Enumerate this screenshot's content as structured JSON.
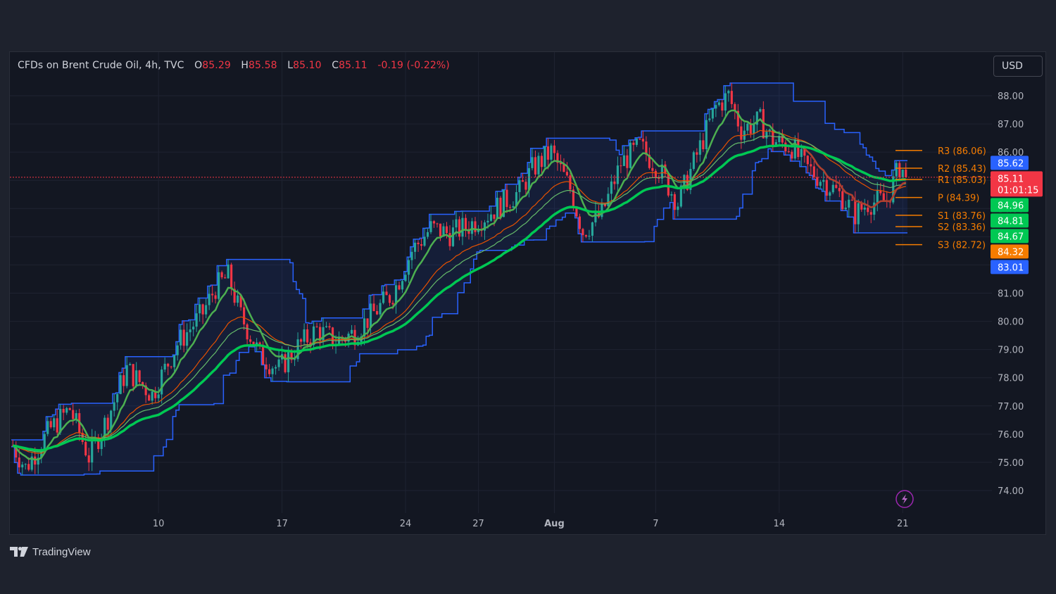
{
  "legend": {
    "symbol": "CFDs on Brent Crude Oil, 4h, TVC",
    "open_label": "O",
    "open": "85.29",
    "high_label": "H",
    "high": "85.58",
    "low_label": "L",
    "low": "85.10",
    "close_label": "C",
    "close": "85.11",
    "change": "-0.19 (-0.22%)"
  },
  "currency": "USD",
  "brand": "TradingView",
  "colors": {
    "up": "#26a69a",
    "down": "#f23645",
    "channel": "#2962ff",
    "ema_fast": "#4caf50",
    "ema_slow": "#43a047",
    "pivot": "#f57c00",
    "background": "#131722"
  },
  "chart_data": {
    "type": "candlestick",
    "instrument": "CFDs on Brent Crude Oil",
    "timeframe": "4h",
    "ylim": [
      73.2,
      88.8
    ],
    "y_ticks": [
      "74.00",
      "75.00",
      "76.00",
      "77.00",
      "78.00",
      "79.00",
      "80.00",
      "81.00",
      "82.00",
      "83.00",
      "84.00",
      "85.00",
      "86.00",
      "87.00",
      "88.00"
    ],
    "x_ticks": [
      {
        "label": "10",
        "bar": 46
      },
      {
        "label": "17",
        "bar": 85
      },
      {
        "label": "24",
        "bar": 124
      },
      {
        "label": "27",
        "bar": 147
      },
      {
        "label": "Aug",
        "bar": 171,
        "bold": true
      },
      {
        "label": "7",
        "bar": 203
      },
      {
        "label": "14",
        "bar": 242
      },
      {
        "label": "21",
        "bar": 281
      }
    ],
    "bars_total": 283,
    "close_path": [
      [
        0,
        75.6
      ],
      [
        4,
        74.8
      ],
      [
        12,
        76.2
      ],
      [
        18,
        76.9
      ],
      [
        24,
        75.2
      ],
      [
        30,
        76.6
      ],
      [
        36,
        78.3
      ],
      [
        44,
        77.4
      ],
      [
        52,
        79.2
      ],
      [
        60,
        80.3
      ],
      [
        64,
        81.2
      ],
      [
        68,
        81.6
      ],
      [
        72,
        80.2
      ],
      [
        78,
        78.8
      ],
      [
        84,
        78.3
      ],
      [
        90,
        79.1
      ],
      [
        96,
        79.7
      ],
      [
        102,
        79.3
      ],
      [
        108,
        79.6
      ],
      [
        114,
        80.3
      ],
      [
        120,
        81.0
      ],
      [
        126,
        82.5
      ],
      [
        132,
        83.3
      ],
      [
        138,
        83.1
      ],
      [
        144,
        83.4
      ],
      [
        150,
        83.8
      ],
      [
        156,
        84.3
      ],
      [
        160,
        84.6
      ],
      [
        164,
        85.4
      ],
      [
        170,
        86.0
      ],
      [
        176,
        84.7
      ],
      [
        180,
        83.2
      ],
      [
        186,
        83.8
      ],
      [
        192,
        85.6
      ],
      [
        198,
        86.2
      ],
      [
        204,
        85.4
      ],
      [
        210,
        84.2
      ],
      [
        216,
        85.9
      ],
      [
        222,
        87.6
      ],
      [
        226,
        88.0
      ],
      [
        230,
        86.8
      ],
      [
        236,
        87.1
      ],
      [
        240,
        86.4
      ],
      [
        246,
        86.2
      ],
      [
        250,
        85.5
      ],
      [
        256,
        85.0
      ],
      [
        262,
        84.4
      ],
      [
        266,
        83.8
      ],
      [
        270,
        84.2
      ],
      [
        276,
        84.3
      ],
      [
        280,
        85.5
      ],
      [
        283,
        85.11
      ]
    ],
    "last_close": 85.11,
    "price_labels": [
      {
        "value": "85.62",
        "price": 85.62,
        "color": "#2962ff"
      },
      {
        "value": "85.11",
        "price": 85.11,
        "color": "#f23645",
        "countdown": "01:01:15"
      },
      {
        "value": "84.96",
        "price": 84.96,
        "color": "#00c853"
      },
      {
        "value": "84.81",
        "price": 84.81,
        "color": "#00c853"
      },
      {
        "value": "84.67",
        "price": 84.67,
        "color": "#00c853"
      },
      {
        "value": "84.32",
        "price": 84.32,
        "color": "#f57c00"
      },
      {
        "value": "83.01",
        "price": 83.01,
        "color": "#2962ff"
      }
    ],
    "pivots": [
      {
        "label": "R3 (86.06)",
        "price": 86.06
      },
      {
        "label": "R2 (85.43)",
        "price": 85.43
      },
      {
        "label": "R1 (85.03)",
        "price": 85.03
      },
      {
        "label": "P (84.39)",
        "price": 84.39
      },
      {
        "label": "S1 (83.76)",
        "price": 83.76
      },
      {
        "label": "S2 (83.36)",
        "price": 83.36
      },
      {
        "label": "S3 (82.72)",
        "price": 82.72
      }
    ]
  }
}
